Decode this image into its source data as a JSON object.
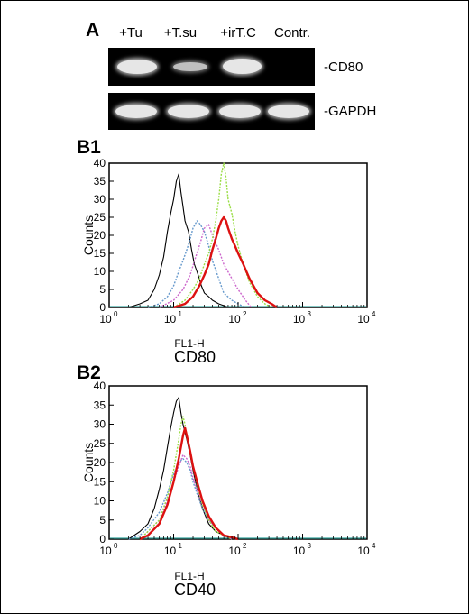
{
  "panels": {
    "a": "A",
    "b1": "B1",
    "b2": "B2"
  },
  "gel": {
    "lanes": [
      "+Tu",
      "+T.su",
      "+irT.C",
      "Contr."
    ],
    "rows": [
      "-CD80",
      "-GAPDH"
    ],
    "band_intensity": [
      [
        1.0,
        0.55,
        0.95,
        0.0
      ],
      [
        1.0,
        1.0,
        1.0,
        1.0
      ]
    ]
  },
  "chart_data": [
    {
      "type": "line",
      "panel": "B1",
      "marker": "CD80",
      "xlabel": "FL1-H",
      "ylabel": "Counts",
      "xscale": "log",
      "xlim": [
        1,
        10000
      ],
      "ylim": [
        0,
        40
      ],
      "x_tick_labels": [
        "10",
        "10",
        "10",
        "10",
        "10"
      ],
      "x_tick_exponents": [
        "0",
        "1",
        "2",
        "3",
        "4"
      ],
      "y_tick_labels": [
        "0",
        "5",
        "10",
        "15",
        "20",
        "25",
        "30",
        "35",
        "40"
      ],
      "series": [
        {
          "color": "#000000",
          "style": "solid",
          "x": [
            2,
            3,
            4,
            5,
            6,
            7,
            8,
            9,
            10,
            11,
            12,
            13,
            14,
            15,
            17,
            19,
            21,
            24,
            27,
            30,
            35,
            40,
            50,
            60,
            70
          ],
          "y": [
            0,
            1,
            2,
            5,
            9,
            14,
            21,
            26,
            30,
            35,
            37,
            32,
            28,
            24,
            21,
            16,
            12,
            9,
            6,
            4,
            3,
            2,
            1,
            0.5,
            0
          ]
        },
        {
          "color": "#6699cc",
          "style": "dotted",
          "x": [
            4,
            6,
            8,
            10,
            12,
            14,
            16,
            18,
            20,
            23,
            26,
            30,
            35,
            40,
            50,
            60,
            80,
            100,
            130
          ],
          "y": [
            0,
            1,
            3,
            6,
            10,
            13,
            16,
            19,
            22,
            24,
            23,
            21,
            17,
            13,
            8,
            4,
            2,
            1,
            0
          ]
        },
        {
          "color": "#cc66cc",
          "style": "dotted",
          "x": [
            6,
            10,
            14,
            18,
            22,
            26,
            30,
            35,
            40,
            50,
            60,
            80,
            100,
            130,
            160
          ],
          "y": [
            0,
            2,
            5,
            9,
            14,
            18,
            22,
            23,
            20,
            16,
            12,
            8,
            5,
            2,
            0
          ]
        },
        {
          "color": "#99dd44",
          "style": "dotted",
          "x": [
            10,
            15,
            20,
            25,
            30,
            35,
            40,
            45,
            50,
            55,
            60,
            65,
            70,
            80,
            90,
            100,
            120,
            150,
            200,
            260,
            330
          ],
          "y": [
            0,
            2,
            5,
            8,
            12,
            15,
            19,
            24,
            30,
            37,
            40,
            36,
            30,
            26,
            21,
            17,
            12,
            7,
            3,
            1,
            0
          ]
        },
        {
          "color": "#dd1111",
          "style": "solid",
          "x": [
            10,
            15,
            20,
            25,
            30,
            35,
            40,
            45,
            50,
            55,
            60,
            65,
            70,
            80,
            90,
            100,
            120,
            150,
            200,
            260,
            330,
            400
          ],
          "y": [
            0,
            1,
            3,
            6,
            9,
            12,
            16,
            19,
            22,
            24,
            25,
            24,
            22,
            19,
            17,
            15,
            12,
            8,
            4,
            2,
            1,
            0
          ]
        }
      ]
    },
    {
      "type": "line",
      "panel": "B2",
      "marker": "CD40",
      "xlabel": "FL1-H",
      "ylabel": "Counts",
      "xscale": "log",
      "xlim": [
        1,
        10000
      ],
      "ylim": [
        0,
        40
      ],
      "x_tick_labels": [
        "10",
        "10",
        "10",
        "10",
        "10"
      ],
      "x_tick_exponents": [
        "0",
        "1",
        "2",
        "3",
        "4"
      ],
      "y_tick_labels": [
        "0",
        "5",
        "10",
        "15",
        "20",
        "25",
        "30",
        "35",
        "40"
      ],
      "series": [
        {
          "color": "#000000",
          "style": "solid",
          "x": [
            2,
            3,
            4,
            5,
            6,
            7,
            8,
            9,
            10,
            11,
            12,
            13,
            14,
            16,
            18,
            20,
            24,
            28,
            35,
            45,
            60,
            80
          ],
          "y": [
            0,
            2,
            4,
            8,
            13,
            18,
            24,
            29,
            33,
            36,
            37,
            33,
            30,
            26,
            22,
            18,
            12,
            8,
            4,
            2,
            1,
            0
          ]
        },
        {
          "color": "#6699cc",
          "style": "dotted",
          "x": [
            2,
            3,
            4,
            6,
            8,
            10,
            12,
            14,
            16,
            18,
            20,
            24,
            28,
            35,
            45,
            60,
            80
          ],
          "y": [
            0,
            1,
            3,
            7,
            12,
            17,
            20,
            21,
            20,
            18,
            15,
            11,
            8,
            5,
            3,
            1,
            0
          ]
        },
        {
          "color": "#cc66cc",
          "style": "dotted",
          "x": [
            3,
            4,
            6,
            8,
            10,
            12,
            14,
            16,
            18,
            20,
            24,
            28,
            35,
            45,
            60,
            80
          ],
          "y": [
            0,
            2,
            5,
            10,
            15,
            19,
            22,
            21,
            19,
            16,
            12,
            9,
            5,
            3,
            1,
            0
          ]
        },
        {
          "color": "#99dd44",
          "style": "dotted",
          "x": [
            3,
            4,
            6,
            8,
            10,
            12,
            13,
            14,
            15,
            16,
            18,
            20,
            24,
            28,
            35,
            45,
            60,
            80
          ],
          "y": [
            0,
            2,
            5,
            11,
            18,
            26,
            30,
            32,
            30,
            27,
            23,
            19,
            13,
            9,
            5,
            2,
            1,
            0
          ]
        },
        {
          "color": "#dd1111",
          "style": "solid",
          "x": [
            3,
            4,
            6,
            8,
            10,
            12,
            14,
            15,
            16,
            18,
            20,
            24,
            28,
            35,
            45,
            60,
            80,
            100
          ],
          "y": [
            0,
            1,
            4,
            9,
            15,
            21,
            27,
            29,
            27,
            23,
            19,
            14,
            10,
            6,
            3,
            1,
            0.5,
            0
          ]
        }
      ]
    }
  ]
}
